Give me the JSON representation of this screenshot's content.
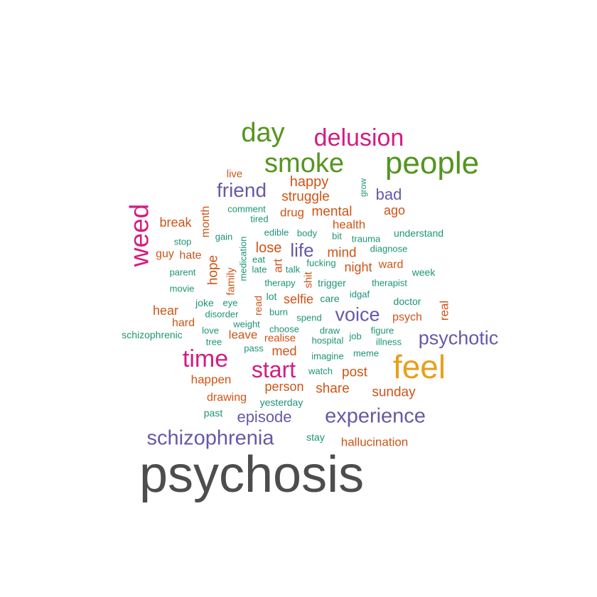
{
  "palette": {
    "gray": "#4d4d4d",
    "gold": "#e6a11a",
    "green": "#54951f",
    "magenta": "#d41c80",
    "purple": "#6659a6",
    "orange": "#cf5416",
    "teal": "#1b9574"
  },
  "words": [
    {
      "text": "psychosis",
      "color": "gray"
    },
    {
      "text": "feel",
      "color": "gold"
    },
    {
      "text": "people",
      "color": "green"
    },
    {
      "text": "smoke",
      "color": "green"
    },
    {
      "text": "day",
      "color": "green"
    },
    {
      "text": "delusion",
      "color": "magenta"
    },
    {
      "text": "weed",
      "color": "magenta"
    },
    {
      "text": "time",
      "color": "magenta"
    },
    {
      "text": "start",
      "color": "magenta"
    },
    {
      "text": "schizophrenia",
      "color": "purple"
    },
    {
      "text": "experience",
      "color": "purple"
    },
    {
      "text": "psychotic",
      "color": "purple"
    },
    {
      "text": "voice",
      "color": "purple"
    },
    {
      "text": "friend",
      "color": "purple"
    },
    {
      "text": "episode",
      "color": "purple"
    },
    {
      "text": "life",
      "color": "purple"
    },
    {
      "text": "bad",
      "color": "purple"
    },
    {
      "text": "happy",
      "color": "orange"
    },
    {
      "text": "struggle",
      "color": "orange"
    },
    {
      "text": "mental",
      "color": "orange"
    },
    {
      "text": "drug",
      "color": "orange"
    },
    {
      "text": "ago",
      "color": "orange"
    },
    {
      "text": "health",
      "color": "orange"
    },
    {
      "text": "break",
      "color": "orange"
    },
    {
      "text": "month",
      "color": "orange"
    },
    {
      "text": "lose",
      "color": "orange"
    },
    {
      "text": "mind",
      "color": "orange"
    },
    {
      "text": "guy",
      "color": "orange"
    },
    {
      "text": "hate",
      "color": "orange"
    },
    {
      "text": "hope",
      "color": "orange"
    },
    {
      "text": "night",
      "color": "orange"
    },
    {
      "text": "ward",
      "color": "orange"
    },
    {
      "text": "art",
      "color": "orange"
    },
    {
      "text": "family",
      "color": "orange"
    },
    {
      "text": "selfie",
      "color": "orange"
    },
    {
      "text": "hear",
      "color": "orange"
    },
    {
      "text": "hard",
      "color": "orange"
    },
    {
      "text": "real",
      "color": "orange"
    },
    {
      "text": "psych",
      "color": "orange"
    },
    {
      "text": "leave",
      "color": "orange"
    },
    {
      "text": "med",
      "color": "orange"
    },
    {
      "text": "post",
      "color": "orange"
    },
    {
      "text": "happen",
      "color": "orange"
    },
    {
      "text": "person",
      "color": "orange"
    },
    {
      "text": "share",
      "color": "orange"
    },
    {
      "text": "sunday",
      "color": "orange"
    },
    {
      "text": "drawing",
      "color": "orange"
    },
    {
      "text": "hallucination",
      "color": "orange"
    },
    {
      "text": "live",
      "color": "orange"
    },
    {
      "text": "read",
      "color": "orange"
    },
    {
      "text": "realise",
      "color": "orange"
    },
    {
      "text": "shit",
      "color": "orange"
    },
    {
      "text": "grow",
      "color": "teal"
    },
    {
      "text": "comment",
      "color": "teal"
    },
    {
      "text": "tired",
      "color": "teal"
    },
    {
      "text": "edible",
      "color": "teal"
    },
    {
      "text": "body",
      "color": "teal"
    },
    {
      "text": "understand",
      "color": "teal"
    },
    {
      "text": "stop",
      "color": "teal"
    },
    {
      "text": "gain",
      "color": "teal"
    },
    {
      "text": "medication",
      "color": "teal"
    },
    {
      "text": "bit",
      "color": "teal"
    },
    {
      "text": "trauma",
      "color": "teal"
    },
    {
      "text": "diagnose",
      "color": "teal"
    },
    {
      "text": "parent",
      "color": "teal"
    },
    {
      "text": "eat",
      "color": "teal"
    },
    {
      "text": "late",
      "color": "teal"
    },
    {
      "text": "fucking",
      "color": "teal"
    },
    {
      "text": "talk",
      "color": "teal"
    },
    {
      "text": "week",
      "color": "teal"
    },
    {
      "text": "movie",
      "color": "teal"
    },
    {
      "text": "therapy",
      "color": "teal"
    },
    {
      "text": "trigger",
      "color": "teal"
    },
    {
      "text": "therapist",
      "color": "teal"
    },
    {
      "text": "lot",
      "color": "teal"
    },
    {
      "text": "care",
      "color": "teal"
    },
    {
      "text": "idgaf",
      "color": "teal"
    },
    {
      "text": "joke",
      "color": "teal"
    },
    {
      "text": "eye",
      "color": "teal"
    },
    {
      "text": "doctor",
      "color": "teal"
    },
    {
      "text": "disorder",
      "color": "teal"
    },
    {
      "text": "burn",
      "color": "teal"
    },
    {
      "text": "spend",
      "color": "teal"
    },
    {
      "text": "weight",
      "color": "teal"
    },
    {
      "text": "schizophrenic",
      "color": "teal"
    },
    {
      "text": "love",
      "color": "teal"
    },
    {
      "text": "choose",
      "color": "teal"
    },
    {
      "text": "draw",
      "color": "teal"
    },
    {
      "text": "figure",
      "color": "teal"
    },
    {
      "text": "tree",
      "color": "teal"
    },
    {
      "text": "hospital",
      "color": "teal"
    },
    {
      "text": "job",
      "color": "teal"
    },
    {
      "text": "illness",
      "color": "teal"
    },
    {
      "text": "pass",
      "color": "teal"
    },
    {
      "text": "imagine",
      "color": "teal"
    },
    {
      "text": "meme",
      "color": "teal"
    },
    {
      "text": "watch",
      "color": "teal"
    },
    {
      "text": "yesterday",
      "color": "teal"
    },
    {
      "text": "past",
      "color": "teal"
    },
    {
      "text": "stay",
      "color": "teal"
    }
  ]
}
